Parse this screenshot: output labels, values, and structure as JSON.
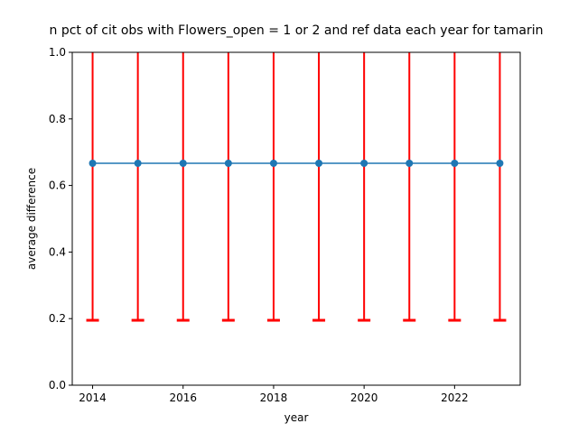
{
  "chart_data": {
    "type": "line",
    "title": "n pct of cit obs with Flowers_open = 1 or 2 and ref data each year for tamarin",
    "xlabel": "year",
    "ylabel": "average difference",
    "x": [
      2014,
      2015,
      2016,
      2017,
      2018,
      2019,
      2020,
      2021,
      2022,
      2023
    ],
    "series": [
      {
        "values": [
          0.6667,
          0.6667,
          0.6667,
          0.6667,
          0.6667,
          0.6667,
          0.6667,
          0.6667,
          0.6667,
          0.6667
        ],
        "error_lower": [
          0.195,
          0.195,
          0.195,
          0.195,
          0.195,
          0.195,
          0.195,
          0.195,
          0.195,
          0.195
        ],
        "error_upper": [
          1.14,
          1.14,
          1.14,
          1.14,
          1.14,
          1.14,
          1.14,
          1.14,
          1.14,
          1.14
        ]
      }
    ],
    "xlim": [
      2013.55,
      2023.45
    ],
    "ylim": [
      0.0,
      1.0
    ],
    "x_ticks": [
      2014,
      2016,
      2018,
      2020,
      2022
    ],
    "y_ticks": [
      "0.0",
      "0.2",
      "0.4",
      "0.6",
      "0.8",
      "1.0"
    ],
    "y_tick_values": [
      0.0,
      0.2,
      0.4,
      0.6,
      0.8,
      1.0
    ],
    "grid": false,
    "colors": {
      "line": "#1f77b4",
      "marker": "#1f77b4",
      "errorbar": "#ff0000",
      "axes": "#000000"
    }
  }
}
